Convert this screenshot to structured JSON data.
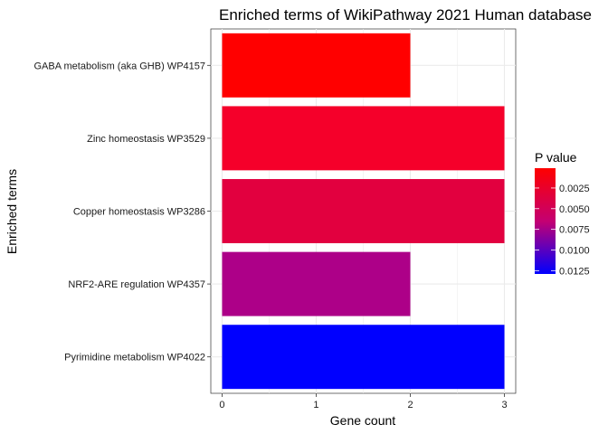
{
  "chart_data": {
    "type": "bar",
    "orientation": "horizontal",
    "title": "Enriched terms of WikiPathway 2021 Human database",
    "xlabel": "Gene count",
    "ylabel": "Enriched terms",
    "xlim": [
      -0.12,
      3.12
    ],
    "xticks": [
      "0",
      "1",
      "2",
      "3"
    ],
    "categories": [
      "GABA metabolism (aka GHB) WP4157",
      "Zinc homeostasis WP3529",
      "Copper homeostasis WP3286",
      "NRF2-ARE regulation WP4357",
      "Pyrimidine metabolism WP4022"
    ],
    "values": [
      2,
      3,
      3,
      2,
      3
    ],
    "p_values": [
      0.0001,
      0.0006,
      0.0021,
      0.0059,
      0.0129
    ],
    "bar_colors": [
      "#ff0000",
      "#f5002a",
      "#e2003f",
      "#ad0088",
      "#0000ff"
    ],
    "grid": true,
    "legend": {
      "title": "P value",
      "placement": "right",
      "labels": [
        "0.0025",
        "0.0050",
        "0.0075",
        "0.0100",
        "0.0125"
      ],
      "label_values": [
        0.0025,
        0.005,
        0.0075,
        0.01,
        0.0125
      ],
      "range": [
        0.0001,
        0.0129
      ],
      "color_low": "#ff0000",
      "color_high": "#0000ff"
    }
  }
}
